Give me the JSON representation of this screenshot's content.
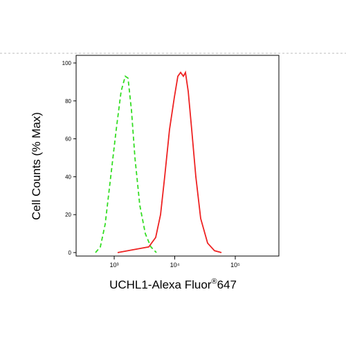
{
  "chart_data": {
    "type": "line",
    "ylabel": "Cell Counts (% Max)",
    "xlabel": {
      "main": "UCHL1-Alexa Fluor",
      "mark": "®",
      "tail": "647"
    },
    "xscale": "log",
    "xlim": [
      235,
      525000
    ],
    "ylim": [
      0,
      100
    ],
    "xticks": [
      {
        "value": 1000,
        "label": "10³"
      },
      {
        "value": 10000,
        "label": "10⁴"
      },
      {
        "value": 100000,
        "label": "10⁵"
      }
    ],
    "yticks": [
      0,
      20,
      40,
      60,
      80,
      100
    ],
    "series": [
      {
        "color": "#33dd22",
        "dash": true,
        "x": [
          491,
          590,
          710,
          877,
          1082,
          1300,
          1524,
          1692,
          1931,
          2203,
          2648,
          3268,
          4030,
          4980
        ],
        "values": [
          0,
          3,
          15,
          40,
          65,
          85,
          93,
          92,
          75,
          50,
          25,
          10,
          3,
          0
        ]
      },
      {
        "color": "#ee2222",
        "dash": false,
        "x": [
          1141,
          2512,
          3727,
          4850,
          5834,
          6828,
          8204,
          9868,
          11250,
          12500,
          13900,
          15030,
          16710,
          19050,
          22320,
          26830,
          34910,
          45410,
          59020
        ],
        "values": [
          0,
          2,
          3,
          8,
          20,
          40,
          65,
          82,
          93,
          95,
          93,
          95,
          85,
          65,
          40,
          18,
          5,
          1,
          0
        ]
      }
    ]
  }
}
